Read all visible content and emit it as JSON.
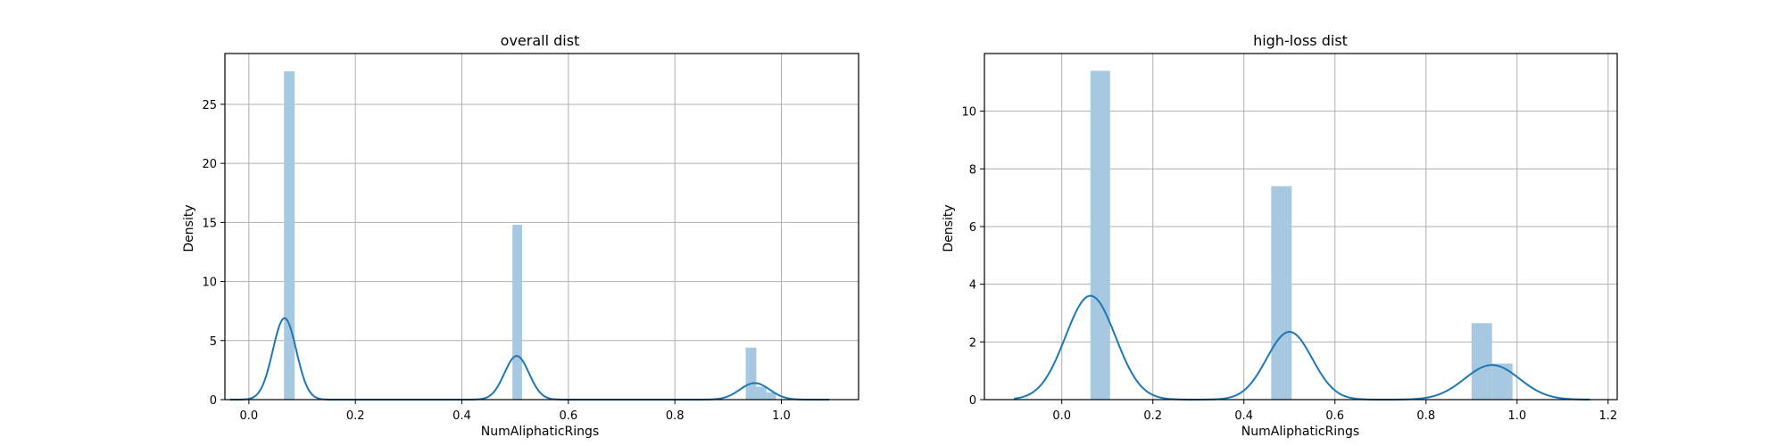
{
  "chart_data": [
    {
      "type": "bar",
      "title": "overall dist",
      "xlabel": "NumAliphaticRings",
      "ylabel": "Density",
      "xlim": [
        -0.045,
        1.145
      ],
      "ylim": [
        0,
        29.3
      ],
      "xticks": [
        0.0,
        0.2,
        0.4,
        0.6,
        0.8,
        1.0
      ],
      "xtick_labels": [
        "0.0",
        "0.2",
        "0.4",
        "0.6",
        "0.8",
        "1.0"
      ],
      "yticks": [
        0,
        5,
        10,
        15,
        20,
        25
      ],
      "ytick_labels": [
        "0",
        "5",
        "10",
        "15",
        "20",
        "25"
      ],
      "grid": true,
      "color": "#1f77b4",
      "bar_color": "#a6c8e0",
      "histogram": {
        "bins": [
          {
            "x0": 0.066,
            "x1": 0.086,
            "density": 27.8
          },
          {
            "x0": 0.495,
            "x1": 0.513,
            "density": 14.8
          },
          {
            "x0": 0.933,
            "x1": 0.953,
            "density": 4.4
          },
          {
            "x0": 0.953,
            "x1": 0.972,
            "density": 1.1
          },
          {
            "x0": 0.972,
            "x1": 0.99,
            "density": 0.6
          }
        ]
      },
      "kde": {
        "x_range": [
          -0.035,
          1.09
        ],
        "components": [
          {
            "mu": 0.067,
            "sigma": 0.022,
            "height": 6.9
          },
          {
            "mu": 0.503,
            "sigma": 0.023,
            "height": 3.7
          },
          {
            "mu": 0.95,
            "sigma": 0.028,
            "height": 1.4
          }
        ]
      }
    },
    {
      "type": "bar",
      "title": "high-loss dist",
      "xlabel": "NumAliphaticRings",
      "ylabel": "Density",
      "xlim": [
        -0.17,
        1.22
      ],
      "ylim": [
        0,
        12.0
      ],
      "xticks": [
        0.0,
        0.2,
        0.4,
        0.6,
        0.8,
        1.0,
        1.2
      ],
      "xtick_labels": [
        "0.0",
        "0.2",
        "0.4",
        "0.6",
        "0.8",
        "1.0",
        "1.2"
      ],
      "yticks": [
        0,
        2,
        4,
        6,
        8,
        10
      ],
      "ytick_labels": [
        "0",
        "2",
        "4",
        "6",
        "8",
        "10"
      ],
      "grid": true,
      "color": "#1f77b4",
      "bar_color": "#a6c8e0",
      "histogram": {
        "bins": [
          {
            "x0": 0.063,
            "x1": 0.106,
            "density": 11.4
          },
          {
            "x0": 0.46,
            "x1": 0.505,
            "density": 7.4
          },
          {
            "x0": 0.9,
            "x1": 0.945,
            "density": 2.65
          },
          {
            "x0": 0.945,
            "x1": 0.99,
            "density": 1.25
          }
        ]
      },
      "kde": {
        "x_range": [
          -0.105,
          1.16
        ],
        "components": [
          {
            "mu": 0.063,
            "sigma": 0.055,
            "height": 3.6
          },
          {
            "mu": 0.5,
            "sigma": 0.05,
            "height": 2.35
          },
          {
            "mu": 0.945,
            "sigma": 0.06,
            "height": 1.2
          }
        ]
      }
    }
  ]
}
